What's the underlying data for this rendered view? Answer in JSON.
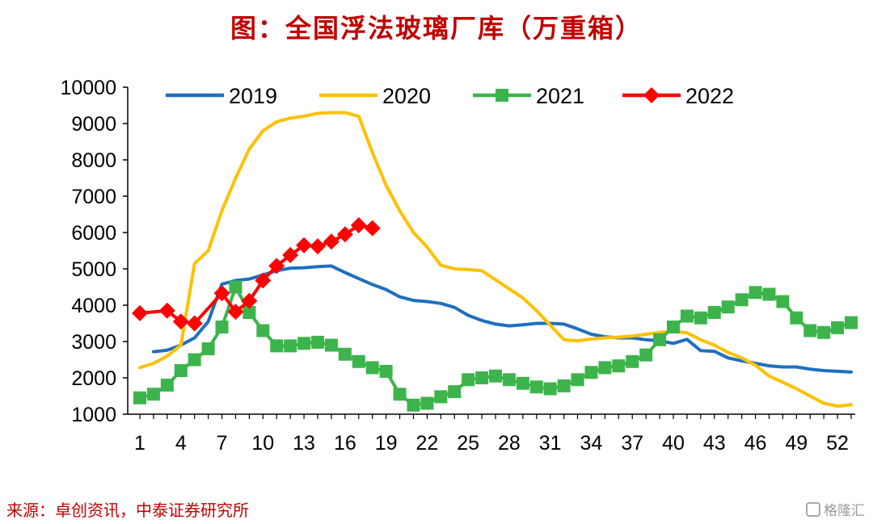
{
  "title": "图：全国浮法玻璃厂库（万重箱）",
  "source": "来源：卓创资讯，中泰证券研究所",
  "watermark": "格隆汇",
  "chart_data": {
    "type": "line",
    "title": "图：全国浮法玻璃厂库（万重箱）",
    "xlabel": "",
    "ylabel": "",
    "ylim": [
      1000,
      10000
    ],
    "yticks": [
      "1000",
      "2000",
      "3000",
      "4000",
      "5000",
      "6000",
      "7000",
      "8000",
      "9000",
      "10000"
    ],
    "xlim": [
      1,
      53
    ],
    "xticks": [
      "1",
      "4",
      "7",
      "10",
      "13",
      "16",
      "19",
      "22",
      "25",
      "28",
      "31",
      "34",
      "37",
      "40",
      "43",
      "46",
      "49",
      "52"
    ],
    "legend_position": "top",
    "grid": false,
    "series": [
      {
        "name": "2019",
        "color": "#1f6fbf",
        "marker": "none",
        "x": [
          2,
          3,
          4,
          5,
          6,
          7,
          8,
          9,
          10,
          11,
          12,
          13,
          14,
          15,
          16,
          17,
          18,
          19,
          20,
          21,
          22,
          23,
          24,
          25,
          26,
          27,
          28,
          29,
          30,
          31,
          32,
          33,
          34,
          35,
          36,
          37,
          38,
          39,
          40,
          41,
          42,
          43,
          44,
          45,
          46,
          47,
          48,
          49,
          50,
          51,
          52,
          53
        ],
        "y": [
          2720,
          2760,
          2900,
          3100,
          3550,
          4580,
          4680,
          4720,
          4830,
          4950,
          5020,
          5030,
          5060,
          5080,
          4900,
          4730,
          4570,
          4430,
          4230,
          4130,
          4100,
          4050,
          3940,
          3720,
          3580,
          3480,
          3430,
          3460,
          3500,
          3500,
          3480,
          3350,
          3200,
          3130,
          3100,
          3100,
          3050,
          3020,
          2950,
          3060,
          2750,
          2730,
          2550,
          2470,
          2400,
          2330,
          2300,
          2300,
          2240,
          2200,
          2180,
          2160
        ]
      },
      {
        "name": "2020",
        "color": "#ffc000",
        "marker": "none",
        "x": [
          1,
          2,
          3,
          4,
          5,
          6,
          7,
          8,
          9,
          10,
          11,
          12,
          13,
          14,
          15,
          16,
          17,
          18,
          19,
          20,
          21,
          22,
          23,
          24,
          25,
          26,
          27,
          28,
          29,
          30,
          31,
          32,
          33,
          34,
          35,
          36,
          37,
          38,
          39,
          40,
          41,
          42,
          43,
          44,
          45,
          46,
          47,
          48,
          49,
          50,
          51,
          52,
          53
        ],
        "y": [
          2280,
          2400,
          2600,
          2900,
          5150,
          5500,
          6600,
          7500,
          8300,
          8800,
          9050,
          9150,
          9200,
          9280,
          9300,
          9300,
          9200,
          8200,
          7300,
          6600,
          6000,
          5600,
          5100,
          5000,
          4980,
          4950,
          4700,
          4450,
          4200,
          3850,
          3450,
          3050,
          3020,
          3070,
          3100,
          3120,
          3150,
          3200,
          3250,
          3280,
          3240,
          3050,
          2900,
          2700,
          2550,
          2350,
          2050,
          1880,
          1700,
          1500,
          1300,
          1220,
          1260
        ]
      },
      {
        "name": "2021",
        "color": "#3cb44b",
        "marker": "square",
        "x": [
          1,
          2,
          3,
          4,
          5,
          6,
          7,
          8,
          9,
          10,
          11,
          12,
          13,
          14,
          15,
          16,
          17,
          18,
          19,
          20,
          21,
          22,
          23,
          24,
          25,
          26,
          27,
          28,
          29,
          30,
          31,
          32,
          33,
          34,
          35,
          36,
          37,
          38,
          39,
          40,
          41,
          42,
          43,
          44,
          45,
          46,
          47,
          48,
          49,
          50,
          51,
          52,
          53
        ],
        "y": [
          1450,
          1550,
          1800,
          2200,
          2500,
          2800,
          3400,
          4500,
          3800,
          3300,
          2880,
          2880,
          2950,
          2980,
          2900,
          2650,
          2450,
          2280,
          2180,
          1550,
          1250,
          1300,
          1480,
          1620,
          1950,
          2000,
          2050,
          1950,
          1850,
          1750,
          1700,
          1780,
          1950,
          2150,
          2280,
          2330,
          2450,
          2630,
          3050,
          3400,
          3700,
          3650,
          3800,
          3950,
          4150,
          4350,
          4300,
          4100,
          3650,
          3300,
          3250,
          3380,
          3520
        ]
      },
      {
        "name": "2022",
        "color": "#ff0000",
        "marker": "diamond",
        "x": [
          1,
          3,
          4,
          5,
          7,
          8,
          9,
          10,
          11,
          12,
          13,
          14,
          15,
          16,
          17,
          18
        ],
        "y": [
          3780,
          3850,
          3550,
          3500,
          4330,
          3820,
          4120,
          4680,
          5080,
          5380,
          5650,
          5620,
          5750,
          5950,
          6200,
          6120
        ]
      }
    ]
  }
}
